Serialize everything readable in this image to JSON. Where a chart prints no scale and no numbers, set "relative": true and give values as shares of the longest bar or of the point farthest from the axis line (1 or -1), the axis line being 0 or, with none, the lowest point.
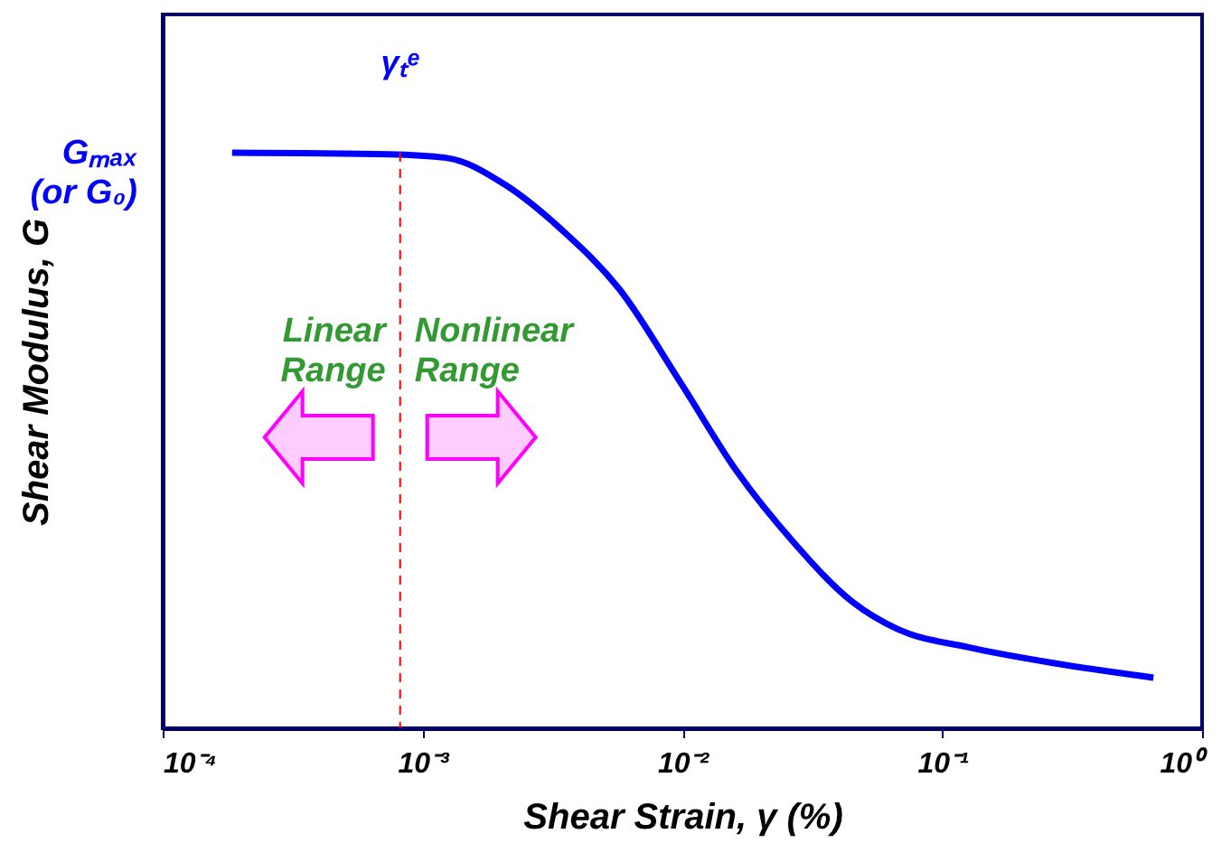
{
  "chart_data": {
    "type": "line",
    "relative": true,
    "xlabel": "Shear Strain, γ (%)",
    "ylabel": "Shear Modulus, G",
    "x": [
      0.000185,
      0.00074,
      0.00123,
      0.00208,
      0.00345,
      0.00574,
      0.0097,
      0.0161,
      0.0268,
      0.0453,
      0.0675,
      0.125,
      0.27,
      0.65
    ],
    "series": [
      {
        "color": "#0000ff",
        "values": [
          1.0,
          0.997,
          0.991,
          0.944,
          0.865,
          0.762,
          0.605,
          0.448,
          0.323,
          0.219,
          0.172,
          0.141,
          0.113,
          0.088
        ]
      }
    ],
    "log": "x",
    "xlim": [
      0.0001,
      1
    ],
    "xticks": [
      {
        "value": 0.0001,
        "label": "10⁻⁴"
      },
      {
        "value": 0.001,
        "label": "10⁻³"
      },
      {
        "value": 0.01,
        "label": "10⁻²"
      },
      {
        "value": 0.1,
        "label": "10⁻¹"
      },
      {
        "value": 1,
        "label": "10⁰"
      }
    ],
    "ref_lines": [
      {
        "axis": "x",
        "value": 0.00082,
        "label": "γₜᵉ",
        "color": "#ff0000",
        "line_style": "dashed"
      }
    ],
    "annotations": [
      "Gₘₐₓ\n(or G₀)",
      "Linear\nRange",
      "Nonlinear\nRange"
    ],
    "grid": false,
    "marker": "none",
    "line_style": "solid"
  }
}
